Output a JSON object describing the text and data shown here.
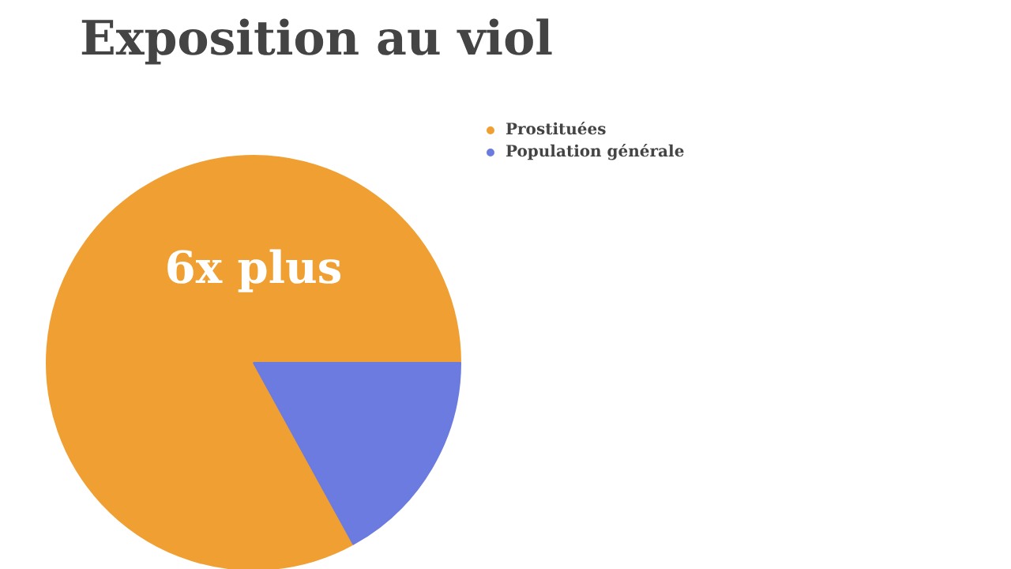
{
  "chart_data": {
    "type": "pie",
    "title": "Exposition au viol",
    "categories": [
      "Prostituées",
      "Population générale"
    ],
    "values": [
      83,
      17
    ],
    "colors": [
      "#f0a033",
      "#6b7bdf"
    ],
    "legend": "top",
    "annotations": [
      "6x plus"
    ]
  }
}
